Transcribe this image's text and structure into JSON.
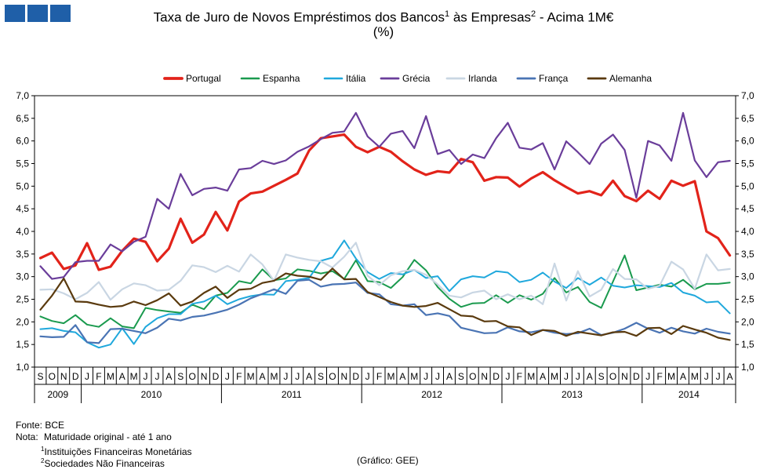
{
  "header": {
    "title_main": "Taxa de Juro de Novos Empréstimos dos Bancos",
    "title_sup1": "1",
    "title_mid": " às Empresas",
    "title_sup2": "2",
    "title_end": " - Acima 1M€",
    "subtitle": "(%)"
  },
  "footer": {
    "source": "Fonte: BCE",
    "note_label": "Nota:",
    "note_text": "Maturidade original - até 1 ano",
    "note1_num": "1",
    "note1_text": "Instituições Financeiras Monetárias",
    "note2_num": "2",
    "note2_text": "Sociedades Não Financeiras",
    "credit": "(Gráfico: GEE)"
  },
  "chart_data": {
    "type": "line",
    "title": "Taxa de Juro de Novos Empréstimos dos Bancos às Empresas - Acima 1M€",
    "ylabel": "(%)",
    "ylim": [
      1.0,
      7.0
    ],
    "yticks": [
      "1,0",
      "1,5",
      "2,0",
      "2,5",
      "3,0",
      "3,5",
      "4,0",
      "4,5",
      "5,0",
      "5,5",
      "6,0",
      "6,5",
      "7,0"
    ],
    "x": [
      "S",
      "O",
      "N",
      "D",
      "J",
      "F",
      "M",
      "A",
      "M",
      "J",
      "J",
      "A",
      "S",
      "O",
      "N",
      "D",
      "J",
      "F",
      "M",
      "A",
      "M",
      "J",
      "J",
      "A",
      "S",
      "O",
      "N",
      "D",
      "J",
      "F",
      "M",
      "A",
      "M",
      "J",
      "J",
      "A",
      "S",
      "O",
      "N",
      "D",
      "J",
      "F",
      "M",
      "A",
      "M",
      "J",
      "J",
      "A",
      "S",
      "O",
      "N",
      "D",
      "J",
      "F",
      "M",
      "A",
      "M",
      "J",
      "J",
      "A"
    ],
    "years": [
      {
        "label": "2009",
        "start": 0,
        "end": 4
      },
      {
        "label": "2010",
        "start": 4,
        "end": 16
      },
      {
        "label": "2011",
        "start": 16,
        "end": 28
      },
      {
        "label": "2012",
        "start": 28,
        "end": 40
      },
      {
        "label": "2013",
        "start": 40,
        "end": 52
      },
      {
        "label": "2014",
        "start": 52,
        "end": 60
      }
    ],
    "series": [
      {
        "name": "Portugal",
        "color": "#e2231a",
        "width": 3.2,
        "values": [
          3.41,
          3.53,
          3.17,
          3.25,
          3.74,
          3.15,
          3.22,
          3.57,
          3.84,
          3.77,
          3.34,
          3.62,
          4.28,
          3.75,
          3.93,
          4.43,
          4.02,
          4.66,
          4.84,
          4.88,
          5.01,
          5.14,
          5.28,
          5.79,
          6.06,
          6.1,
          6.14,
          5.87,
          5.75,
          5.87,
          5.76,
          5.55,
          5.37,
          5.25,
          5.33,
          5.3,
          5.6,
          5.53,
          5.12,
          5.2,
          5.19,
          4.99,
          5.17,
          5.31,
          5.13,
          4.98,
          4.84,
          4.89,
          4.8,
          5.12,
          4.78,
          4.67,
          4.9,
          4.72,
          5.12,
          5.01,
          5.11,
          4.0,
          3.85,
          3.47
        ]
      },
      {
        "name": "Espanha",
        "color": "#1a9a4e",
        "width": 2,
        "values": [
          2.12,
          2.02,
          1.97,
          2.15,
          1.94,
          1.89,
          2.08,
          1.9,
          1.86,
          2.31,
          2.26,
          2.23,
          2.2,
          2.38,
          2.28,
          2.58,
          2.64,
          2.9,
          2.85,
          3.16,
          2.92,
          2.96,
          3.16,
          3.13,
          3.07,
          3.12,
          2.95,
          3.36,
          2.9,
          2.88,
          2.75,
          2.99,
          3.37,
          3.14,
          2.77,
          2.51,
          2.33,
          2.41,
          2.42,
          2.59,
          2.42,
          2.59,
          2.49,
          2.62,
          2.97,
          2.65,
          2.77,
          2.44,
          2.31,
          2.89,
          3.47,
          2.7,
          2.76,
          2.82,
          2.78,
          2.93,
          2.72,
          2.84,
          2.84,
          2.87
        ]
      },
      {
        "name": "Itália",
        "color": "#1fa8dc",
        "width": 2,
        "values": [
          1.84,
          1.86,
          1.8,
          1.77,
          1.55,
          1.43,
          1.5,
          1.86,
          1.51,
          1.89,
          2.08,
          2.17,
          2.17,
          2.4,
          2.45,
          2.58,
          2.39,
          2.5,
          2.57,
          2.61,
          2.6,
          2.9,
          2.93,
          2.97,
          3.35,
          3.42,
          3.8,
          3.4,
          3.1,
          2.95,
          3.08,
          3.05,
          3.15,
          2.97,
          3.01,
          2.68,
          2.94,
          3.01,
          2.98,
          3.12,
          3.09,
          2.88,
          2.93,
          3.09,
          2.89,
          2.75,
          2.97,
          2.82,
          2.98,
          2.8,
          2.76,
          2.81,
          2.79,
          2.77,
          2.86,
          2.65,
          2.58,
          2.43,
          2.45,
          2.19
        ]
      },
      {
        "name": "Grécia",
        "color": "#6a3d9a",
        "width": 2.2,
        "values": [
          3.23,
          2.95,
          2.99,
          3.32,
          3.35,
          3.35,
          3.71,
          3.56,
          3.77,
          3.88,
          4.72,
          4.5,
          5.27,
          4.8,
          4.94,
          4.97,
          4.9,
          5.37,
          5.4,
          5.56,
          5.49,
          5.57,
          5.76,
          5.88,
          6.04,
          6.18,
          6.21,
          6.62,
          6.1,
          5.87,
          6.16,
          6.22,
          5.84,
          6.55,
          5.71,
          5.8,
          5.49,
          5.7,
          5.62,
          6.06,
          6.4,
          5.85,
          5.81,
          5.95,
          5.37,
          5.99,
          5.75,
          5.49,
          5.94,
          6.14,
          5.8,
          4.74,
          6.0,
          5.9,
          5.56,
          6.62,
          5.57,
          5.2,
          5.53,
          5.56
        ]
      },
      {
        "name": "Irlanda",
        "color": "#c9d6e3",
        "width": 2.2,
        "values": [
          2.71,
          2.72,
          2.63,
          2.5,
          2.64,
          2.88,
          2.49,
          2.72,
          2.85,
          2.81,
          2.69,
          2.71,
          2.91,
          3.25,
          3.21,
          3.1,
          3.24,
          3.11,
          3.49,
          3.27,
          2.91,
          3.49,
          3.42,
          3.37,
          3.34,
          3.2,
          3.44,
          3.75,
          3.02,
          2.81,
          3.03,
          3.12,
          3.15,
          3.04,
          2.83,
          2.58,
          2.54,
          2.65,
          2.69,
          2.5,
          2.61,
          2.5,
          2.58,
          2.39,
          3.29,
          2.47,
          3.12,
          2.56,
          2.71,
          3.17,
          2.95,
          2.94,
          2.73,
          2.8,
          3.33,
          3.16,
          2.73,
          3.49,
          3.14,
          3.17
        ]
      },
      {
        "name": "França",
        "color": "#4a74b4",
        "width": 2.2,
        "values": [
          1.68,
          1.66,
          1.67,
          1.93,
          1.55,
          1.53,
          1.84,
          1.85,
          1.8,
          1.75,
          1.87,
          2.07,
          2.03,
          2.11,
          2.14,
          2.2,
          2.27,
          2.38,
          2.52,
          2.62,
          2.72,
          2.62,
          2.91,
          2.93,
          2.78,
          2.83,
          2.84,
          2.87,
          2.64,
          2.61,
          2.39,
          2.36,
          2.39,
          2.15,
          2.19,
          2.13,
          1.87,
          1.81,
          1.75,
          1.76,
          1.88,
          1.79,
          1.77,
          1.82,
          1.76,
          1.73,
          1.75,
          1.85,
          1.71,
          1.76,
          1.85,
          1.98,
          1.85,
          1.76,
          1.87,
          1.79,
          1.74,
          1.85,
          1.78,
          1.74
        ]
      },
      {
        "name": "Alemanha",
        "color": "#5a3a0e",
        "width": 2.2,
        "values": [
          2.27,
          2.58,
          2.96,
          2.45,
          2.44,
          2.38,
          2.33,
          2.35,
          2.45,
          2.37,
          2.48,
          2.63,
          2.36,
          2.45,
          2.64,
          2.78,
          2.53,
          2.71,
          2.73,
          2.86,
          2.91,
          3.07,
          3.02,
          3.0,
          2.93,
          3.18,
          2.94,
          2.95,
          2.66,
          2.55,
          2.44,
          2.36,
          2.33,
          2.35,
          2.42,
          2.28,
          2.14,
          2.12,
          2.01,
          2.02,
          1.9,
          1.88,
          1.71,
          1.82,
          1.8,
          1.69,
          1.78,
          1.74,
          1.7,
          1.77,
          1.78,
          1.69,
          1.86,
          1.87,
          1.73,
          1.91,
          1.83,
          1.76,
          1.65,
          1.6
        ]
      }
    ],
    "legend_position": "top"
  }
}
